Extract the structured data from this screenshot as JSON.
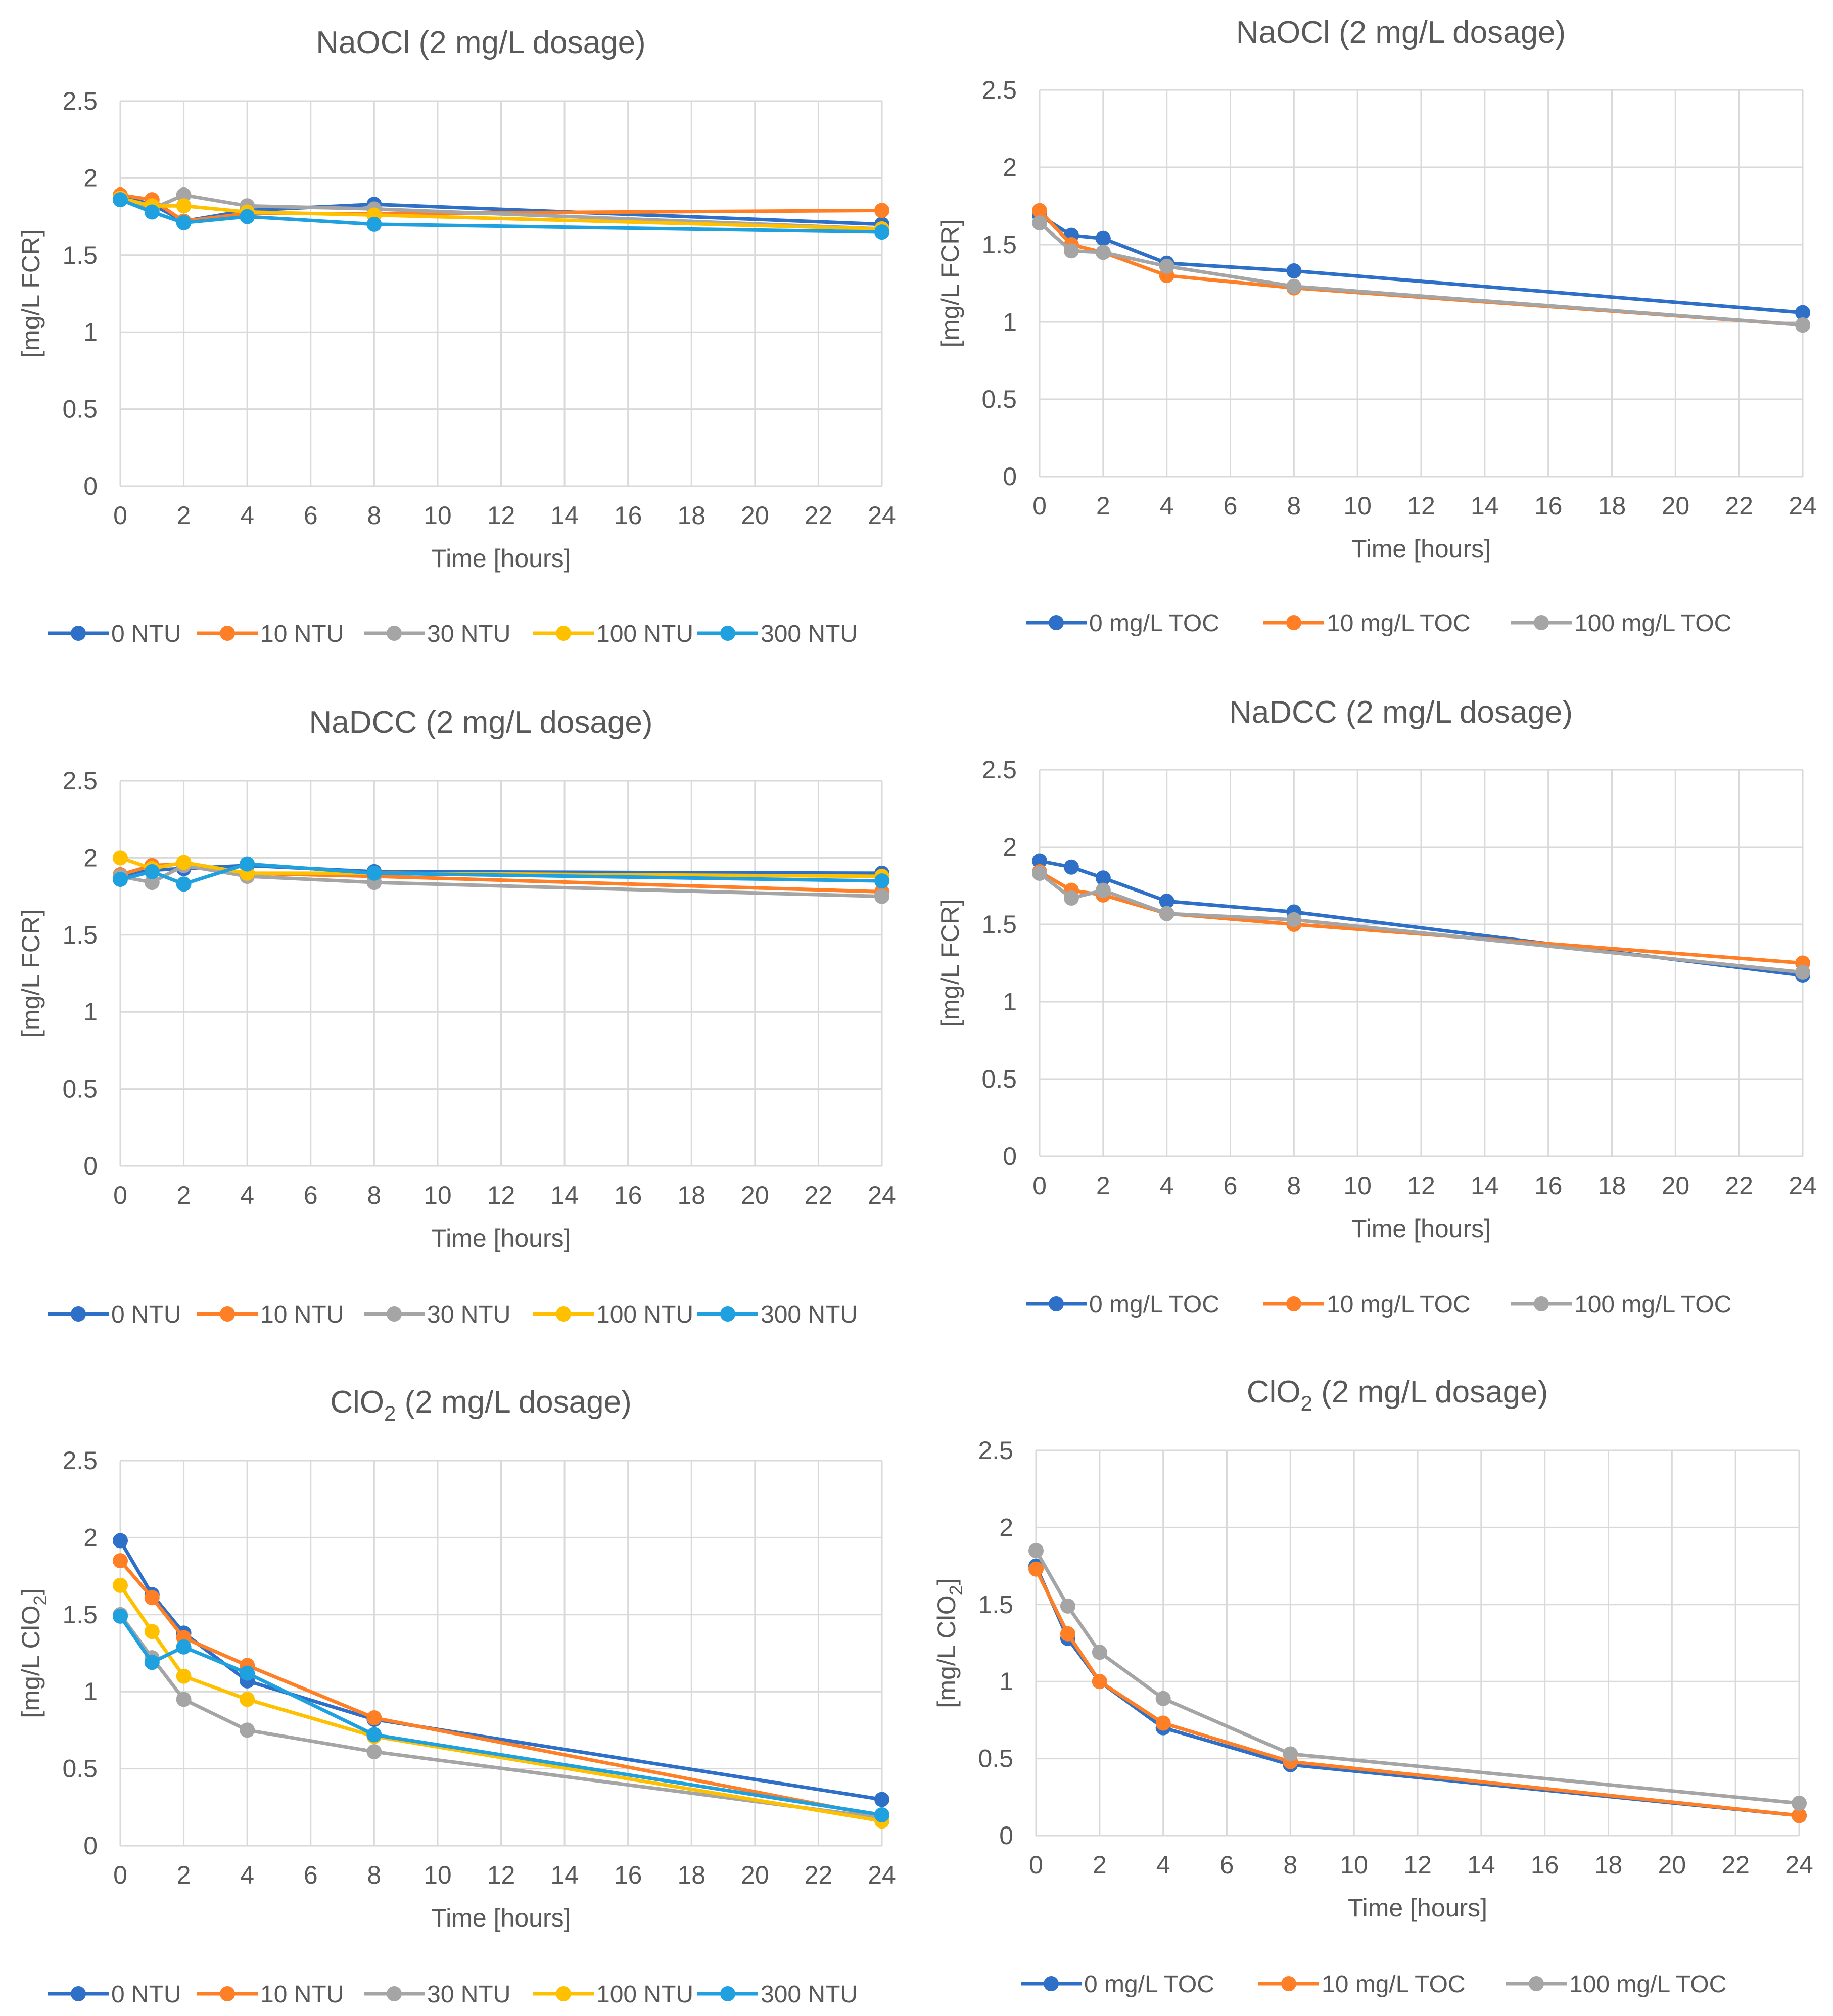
{
  "colors": {
    "dark_blue": "#2e6fc7",
    "orange": "#ff7f27",
    "gray": "#a5a5a5",
    "yellow": "#ffc000",
    "light_blue": "#1fa1e0"
  },
  "chart_data": [
    {
      "type": "line",
      "title_main": "NaOCl (2 mg/L dosage)",
      "title_sub": "",
      "title_rest": "",
      "xlabel": "Time [hours]",
      "ylabel_main": "[mg/L FCR]",
      "ylabel_sub": "",
      "ylabel_rest": "",
      "xlim": [
        0,
        24
      ],
      "ylim": [
        0,
        2.5
      ],
      "xticks": [
        "0",
        "2",
        "4",
        "6",
        "8",
        "10",
        "12",
        "14",
        "16",
        "18",
        "20",
        "22",
        "24"
      ],
      "yticks": [
        "0",
        "0.5",
        "1",
        "1.5",
        "2",
        "2.5"
      ],
      "x": [
        0,
        1,
        2,
        4,
        8,
        24
      ],
      "series": [
        {
          "name": "0 NTU",
          "color": "#2e6fc7",
          "values": [
            1.88,
            1.83,
            1.72,
            1.79,
            1.83,
            1.7
          ]
        },
        {
          "name": "10 NTU",
          "color": "#ff7f27",
          "values": [
            1.89,
            1.86,
            1.72,
            1.77,
            1.77,
            1.79
          ]
        },
        {
          "name": "30 NTU",
          "color": "#a5a5a5",
          "values": [
            1.87,
            1.8,
            1.89,
            1.82,
            1.8,
            1.67
          ]
        },
        {
          "name": "100 NTU",
          "color": "#ffc000",
          "values": [
            1.87,
            1.82,
            1.82,
            1.78,
            1.76,
            1.67
          ]
        },
        {
          "name": "300 NTU",
          "color": "#1fa1e0",
          "values": [
            1.86,
            1.78,
            1.71,
            1.75,
            1.7,
            1.65
          ]
        }
      ]
    },
    {
      "type": "line",
      "title_main": "NaOCl (2 mg/L dosage)",
      "title_sub": "",
      "title_rest": "",
      "xlabel": "Time [hours]",
      "ylabel_main": "[mg/L FCR]",
      "ylabel_sub": "",
      "ylabel_rest": "",
      "xlim": [
        0,
        24
      ],
      "ylim": [
        0,
        2.5
      ],
      "xticks": [
        "0",
        "2",
        "4",
        "6",
        "8",
        "10",
        "12",
        "14",
        "16",
        "18",
        "20",
        "22",
        "24"
      ],
      "yticks": [
        "0",
        "0.5",
        "1",
        "1.5",
        "2",
        "2.5"
      ],
      "x": [
        0,
        1,
        2,
        4,
        8,
        24
      ],
      "series": [
        {
          "name": "0 mg/L TOC",
          "color": "#2e6fc7",
          "values": [
            1.69,
            1.56,
            1.54,
            1.38,
            1.33,
            1.06
          ]
        },
        {
          "name": "10 mg/L TOC",
          "color": "#ff7f27",
          "values": [
            1.72,
            1.5,
            1.45,
            1.3,
            1.22,
            0.98
          ]
        },
        {
          "name": "100 mg/L TOC",
          "color": "#a5a5a5",
          "values": [
            1.64,
            1.46,
            1.45,
            1.36,
            1.23,
            0.98
          ]
        }
      ]
    },
    {
      "type": "line",
      "title_main": "NaDCC (2 mg/L dosage)",
      "title_sub": "",
      "title_rest": "",
      "xlabel": "Time [hours]",
      "ylabel_main": "[mg/L FCR]",
      "ylabel_sub": "",
      "ylabel_rest": "",
      "xlim": [
        0,
        24
      ],
      "ylim": [
        0,
        2.5
      ],
      "xticks": [
        "0",
        "2",
        "4",
        "6",
        "8",
        "10",
        "12",
        "14",
        "16",
        "18",
        "20",
        "22",
        "24"
      ],
      "yticks": [
        "0",
        "0.5",
        "1",
        "1.5",
        "2",
        "2.5"
      ],
      "x": [
        0,
        1,
        2,
        4,
        8,
        24
      ],
      "series": [
        {
          "name": "0 NTU",
          "color": "#2e6fc7",
          "values": [
            1.88,
            1.92,
            1.93,
            1.95,
            1.91,
            1.9
          ]
        },
        {
          "name": "10 NTU",
          "color": "#ff7f27",
          "values": [
            1.89,
            1.95,
            1.96,
            1.9,
            1.88,
            1.78
          ]
        },
        {
          "name": "30 NTU",
          "color": "#a5a5a5",
          "values": [
            1.88,
            1.84,
            1.95,
            1.88,
            1.84,
            1.75
          ]
        },
        {
          "name": "100 NTU",
          "color": "#ffc000",
          "values": [
            2.0,
            1.93,
            1.97,
            1.9,
            1.9,
            1.88
          ]
        },
        {
          "name": "300 NTU",
          "color": "#1fa1e0",
          "values": [
            1.86,
            1.91,
            1.83,
            1.96,
            1.9,
            1.85
          ]
        }
      ]
    },
    {
      "type": "line",
      "title_main": "NaDCC (2 mg/L dosage)",
      "title_sub": "",
      "title_rest": "",
      "xlabel": "Time [hours]",
      "ylabel_main": "[mg/L FCR]",
      "ylabel_sub": "",
      "ylabel_rest": "",
      "xlim": [
        0,
        24
      ],
      "ylim": [
        0,
        2.5
      ],
      "xticks": [
        "0",
        "2",
        "4",
        "6",
        "8",
        "10",
        "12",
        "14",
        "16",
        "18",
        "20",
        "22",
        "24"
      ],
      "yticks": [
        "0",
        "0.5",
        "1",
        "1.5",
        "2",
        "2.5"
      ],
      "x": [
        0,
        1,
        2,
        4,
        8,
        24
      ],
      "series": [
        {
          "name": "0 mg/L TOC",
          "color": "#2e6fc7",
          "values": [
            1.91,
            1.87,
            1.8,
            1.65,
            1.58,
            1.17
          ]
        },
        {
          "name": "10 mg/L TOC",
          "color": "#ff7f27",
          "values": [
            1.84,
            1.72,
            1.69,
            1.57,
            1.5,
            1.25
          ]
        },
        {
          "name": "100 mg/L TOC",
          "color": "#a5a5a5",
          "values": [
            1.83,
            1.67,
            1.72,
            1.57,
            1.53,
            1.19
          ]
        }
      ]
    },
    {
      "type": "line",
      "title_main": "ClO",
      "title_sub": "2",
      "title_rest": " (2 mg/L dosage)",
      "xlabel": "Time [hours]",
      "ylabel_main": "[mg/L ClO",
      "ylabel_sub": "2",
      "ylabel_rest": "]",
      "xlim": [
        0,
        24
      ],
      "ylim": [
        0,
        2.5
      ],
      "xticks": [
        "0",
        "2",
        "4",
        "6",
        "8",
        "10",
        "12",
        "14",
        "16",
        "18",
        "20",
        "22",
        "24"
      ],
      "yticks": [
        "0",
        "0.5",
        "1",
        "1.5",
        "2",
        "2.5"
      ],
      "x": [
        0,
        1,
        2,
        4,
        8,
        24
      ],
      "series": [
        {
          "name": "0 NTU",
          "color": "#2e6fc7",
          "values": [
            1.98,
            1.63,
            1.38,
            1.07,
            0.82,
            0.3
          ]
        },
        {
          "name": "10 NTU",
          "color": "#ff7f27",
          "values": [
            1.85,
            1.61,
            1.35,
            1.17,
            0.83,
            0.19
          ]
        },
        {
          "name": "30 NTU",
          "color": "#a5a5a5",
          "values": [
            1.5,
            1.22,
            0.95,
            0.75,
            0.61,
            0.18
          ]
        },
        {
          "name": "100 NTU",
          "color": "#ffc000",
          "values": [
            1.69,
            1.39,
            1.1,
            0.95,
            0.71,
            0.16
          ]
        },
        {
          "name": "300 NTU",
          "color": "#1fa1e0",
          "values": [
            1.49,
            1.19,
            1.29,
            1.12,
            0.72,
            0.2
          ]
        }
      ]
    },
    {
      "type": "line",
      "title_main": "ClO",
      "title_sub": "2",
      "title_rest": " (2 mg/L dosage)",
      "xlabel": "Time [hours]",
      "ylabel_main": "[mg/L ClO",
      "ylabel_sub": "2",
      "ylabel_rest": "]",
      "xlim": [
        0,
        24
      ],
      "ylim": [
        0,
        2.5
      ],
      "xticks": [
        "0",
        "2",
        "4",
        "6",
        "8",
        "10",
        "12",
        "14",
        "16",
        "18",
        "20",
        "22",
        "24"
      ],
      "yticks": [
        "0",
        "0.5",
        "1",
        "1.5",
        "2",
        "2.5"
      ],
      "x": [
        0,
        1,
        2,
        4,
        8,
        24
      ],
      "series": [
        {
          "name": "0 mg/L TOC",
          "color": "#2e6fc7",
          "values": [
            1.75,
            1.28,
            1.0,
            0.7,
            0.46,
            0.13
          ]
        },
        {
          "name": "10 mg/L TOC",
          "color": "#ff7f27",
          "values": [
            1.73,
            1.31,
            1.0,
            0.73,
            0.48,
            0.13
          ]
        },
        {
          "name": "100 mg/L TOC",
          "color": "#a5a5a5",
          "values": [
            1.85,
            1.49,
            1.19,
            0.89,
            0.53,
            0.21
          ]
        }
      ]
    }
  ]
}
